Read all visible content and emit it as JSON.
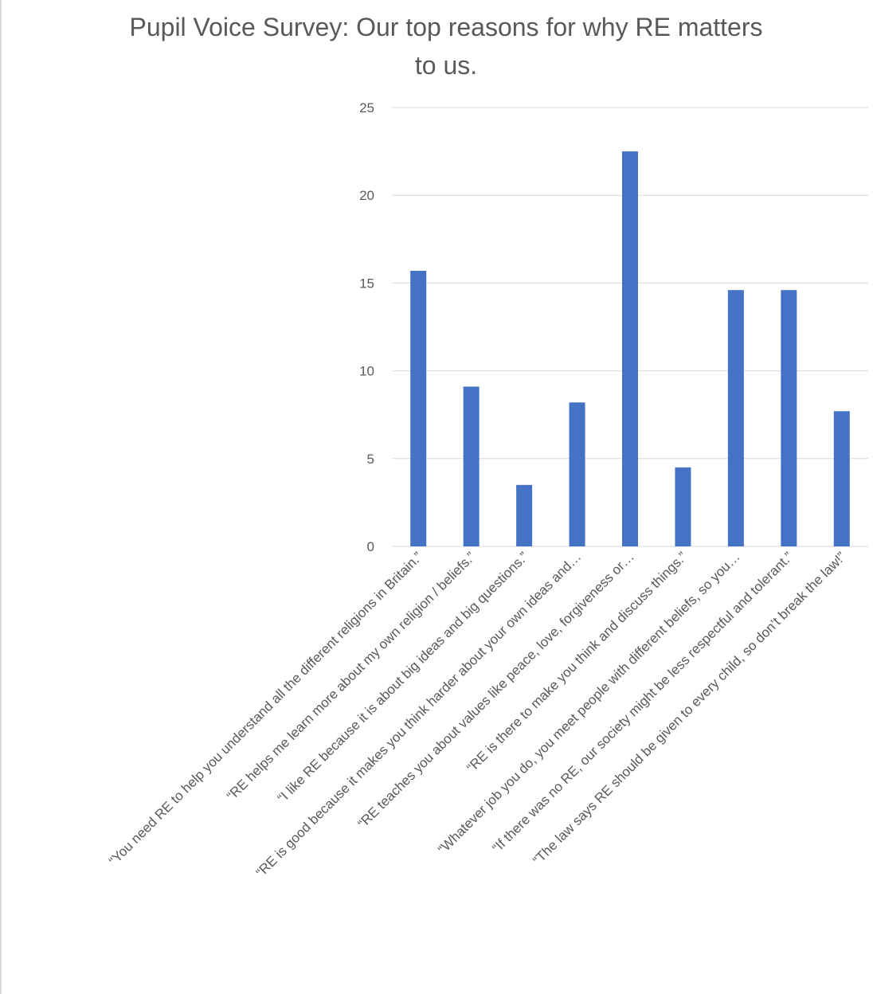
{
  "chart_data": {
    "type": "bar",
    "title": "Pupil Voice Survey: Our top reasons for why RE matters to us.",
    "title_lines": [
      "Pupil Voice Survey: Our top reasons for why RE matters",
      "to us."
    ],
    "categories": [
      "“You need RE to help you understand all the different religions in Britain.”",
      "“RE helps me learn more about my own religion / beliefs.”",
      "“I like RE because it is about big ideas and big questions.”",
      "“RE is good because it makes you think harder about your own ideas and…",
      "“RE teaches you about values like peace, love, forgiveness or…",
      "“RE is there to make you think and discuss things.”",
      "“Whatever job you do, you meet people with different beliefs, so you…",
      "“If there was no RE, our society might be less respectful and tolerant.”",
      "“The law says RE should be given to every child, so don’t break the law!”"
    ],
    "series": [
      {
        "values": [
          15.7,
          9.1,
          3.5,
          8.2,
          22.5,
          4.5,
          14.6,
          14.6,
          7.7
        ]
      }
    ],
    "ylim": [
      0,
      25
    ],
    "yticks": [
      0,
      5,
      10,
      15,
      20,
      25
    ],
    "grid": true,
    "legend": "none",
    "bar_color": "#4472c4",
    "grid_color": "#d9d9d9",
    "text_color": "#595959"
  }
}
